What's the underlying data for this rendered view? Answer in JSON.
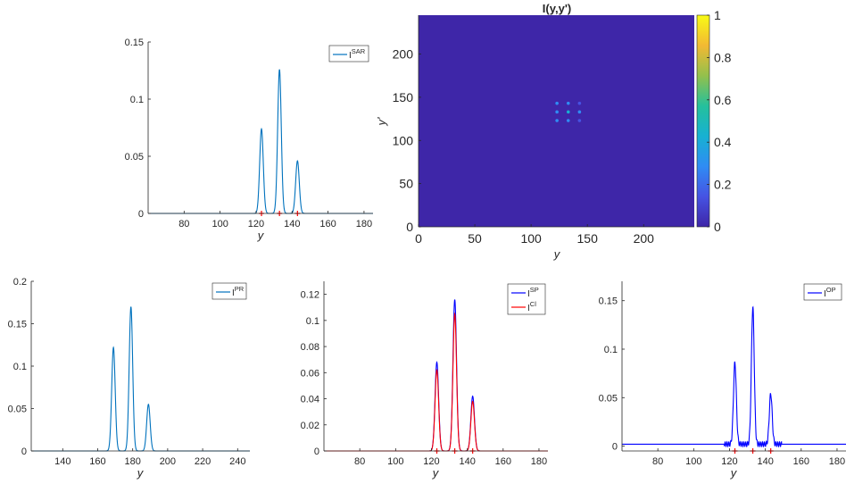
{
  "chart_data": [
    {
      "id": "sar",
      "type": "line",
      "xlim": [
        60,
        185
      ],
      "ylim": [
        0,
        0.15
      ],
      "xticks": [
        80,
        100,
        120,
        140,
        160,
        180
      ],
      "yticks": [
        0,
        0.05,
        0.1,
        0.15
      ],
      "ytick_labels": [
        "0",
        "0.05",
        "0.1",
        "0.15"
      ],
      "xlabel": "y",
      "ylabel": "",
      "legend_position": "top-right",
      "series": [
        {
          "label_base": "I",
          "label_sup": "SAR",
          "color": "#0072BD",
          "peaks": [
            {
              "x": 123,
              "h": 0.074,
              "w": 1.0
            },
            {
              "x": 133,
              "h": 0.126,
              "w": 1.0
            },
            {
              "x": 143,
              "h": 0.046,
              "w": 1.0
            }
          ]
        }
      ],
      "markers": [
        123,
        133,
        143
      ],
      "marker_color": "#ff0000"
    },
    {
      "id": "image",
      "type": "heatmap",
      "title": "I(y,y')",
      "xlim": [
        0,
        245
      ],
      "ylim": [
        0,
        245
      ],
      "xticks": [
        0,
        50,
        100,
        150,
        200
      ],
      "yticks": [
        0,
        50,
        100,
        150,
        200
      ],
      "xlabel": "y",
      "ylabel": "y'",
      "background_value": 0.0,
      "background_color": "#3e26a8",
      "spots": [
        {
          "x": 123,
          "y": 143,
          "v": 0.25
        },
        {
          "x": 133,
          "y": 143,
          "v": 0.3
        },
        {
          "x": 143,
          "y": 143,
          "v": 0.2
        },
        {
          "x": 123,
          "y": 133,
          "v": 0.35
        },
        {
          "x": 133,
          "y": 133,
          "v": 0.45
        },
        {
          "x": 143,
          "y": 133,
          "v": 0.3
        },
        {
          "x": 123,
          "y": 123,
          "v": 0.25
        },
        {
          "x": 133,
          "y": 123,
          "v": 0.3
        },
        {
          "x": 143,
          "y": 123,
          "v": 0.2
        }
      ],
      "colorbar": {
        "range": [
          0,
          1
        ],
        "ticks": [
          0,
          0.2,
          0.4,
          0.6,
          0.8,
          1
        ],
        "tick_labels": [
          "0",
          "0.2",
          "0.4",
          "0.6",
          "0.8",
          "1"
        ],
        "colormap": [
          "#3e26a8",
          "#4653e3",
          "#2f8cf4",
          "#17b1d2",
          "#25c09c",
          "#93c04c",
          "#f2b933",
          "#f9fb15"
        ]
      }
    },
    {
      "id": "pr",
      "type": "line",
      "xlim": [
        122,
        247
      ],
      "ylim": [
        0,
        0.2
      ],
      "xticks": [
        140,
        160,
        180,
        200,
        220,
        240
      ],
      "yticks": [
        0,
        0.05,
        0.1,
        0.15,
        0.2
      ],
      "ytick_labels": [
        "0",
        "0.05",
        "0.1",
        "0.15",
        "0.2"
      ],
      "xlabel": "y",
      "ylabel": "",
      "legend_position": "top-right",
      "series": [
        {
          "label_base": "I",
          "label_sup": "PR",
          "color": "#0072BD",
          "peaks": [
            {
              "x": 169,
              "h": 0.122,
              "w": 1.0
            },
            {
              "x": 179,
              "h": 0.17,
              "w": 1.0
            },
            {
              "x": 189,
              "h": 0.055,
              "w": 1.0
            }
          ]
        }
      ],
      "markers": [],
      "marker_color": "#ff0000"
    },
    {
      "id": "sp",
      "type": "line",
      "xlim": [
        60,
        185
      ],
      "ylim": [
        0,
        0.13
      ],
      "xticks": [
        80,
        100,
        120,
        140,
        160,
        180
      ],
      "yticks": [
        0,
        0.02,
        0.04,
        0.06,
        0.08,
        0.1,
        0.12
      ],
      "ytick_labels": [
        "0",
        "0.02",
        "0.04",
        "0.06",
        "0.08",
        "0.1",
        "0.12"
      ],
      "xlabel": "y",
      "ylabel": "",
      "legend_position": "top-right",
      "series": [
        {
          "label_base": "I",
          "label_sup": "SP",
          "color": "#0000ff",
          "peaks": [
            {
              "x": 123,
              "h": 0.068,
              "w": 1.0
            },
            {
              "x": 133,
              "h": 0.116,
              "w": 1.0
            },
            {
              "x": 143,
              "h": 0.042,
              "w": 1.0
            }
          ]
        },
        {
          "label_base": "I",
          "label_sup": "Cl",
          "color": "#ff0000",
          "peaks": [
            {
              "x": 123,
              "h": 0.062,
              "w": 1.0
            },
            {
              "x": 133,
              "h": 0.105,
              "w": 1.0
            },
            {
              "x": 143,
              "h": 0.038,
              "w": 1.0
            }
          ]
        }
      ],
      "markers": [
        123,
        133,
        143
      ],
      "marker_color": "#ff0000"
    },
    {
      "id": "op",
      "type": "line",
      "xlim": [
        60,
        185
      ],
      "ylim": [
        -0.005,
        0.17
      ],
      "xticks": [
        80,
        100,
        120,
        140,
        160,
        180
      ],
      "yticks": [
        0,
        0.05,
        0.1,
        0.15
      ],
      "ytick_labels": [
        "0",
        "0.05",
        "0.1",
        "0.15"
      ],
      "xlabel": "y",
      "ylabel": "",
      "legend_position": "top-right",
      "series": [
        {
          "label_base": "I",
          "label_sup": "OP",
          "color": "#0000ff",
          "baseline": 0.002,
          "ripple": 0.003,
          "peaks": [
            {
              "x": 123,
              "h": 0.084,
              "w": 0.8
            },
            {
              "x": 133,
              "h": 0.141,
              "w": 0.8
            },
            {
              "x": 143,
              "h": 0.052,
              "w": 0.8
            }
          ]
        }
      ],
      "markers": [
        123,
        133,
        143
      ],
      "marker_color": "#ff0000"
    }
  ]
}
